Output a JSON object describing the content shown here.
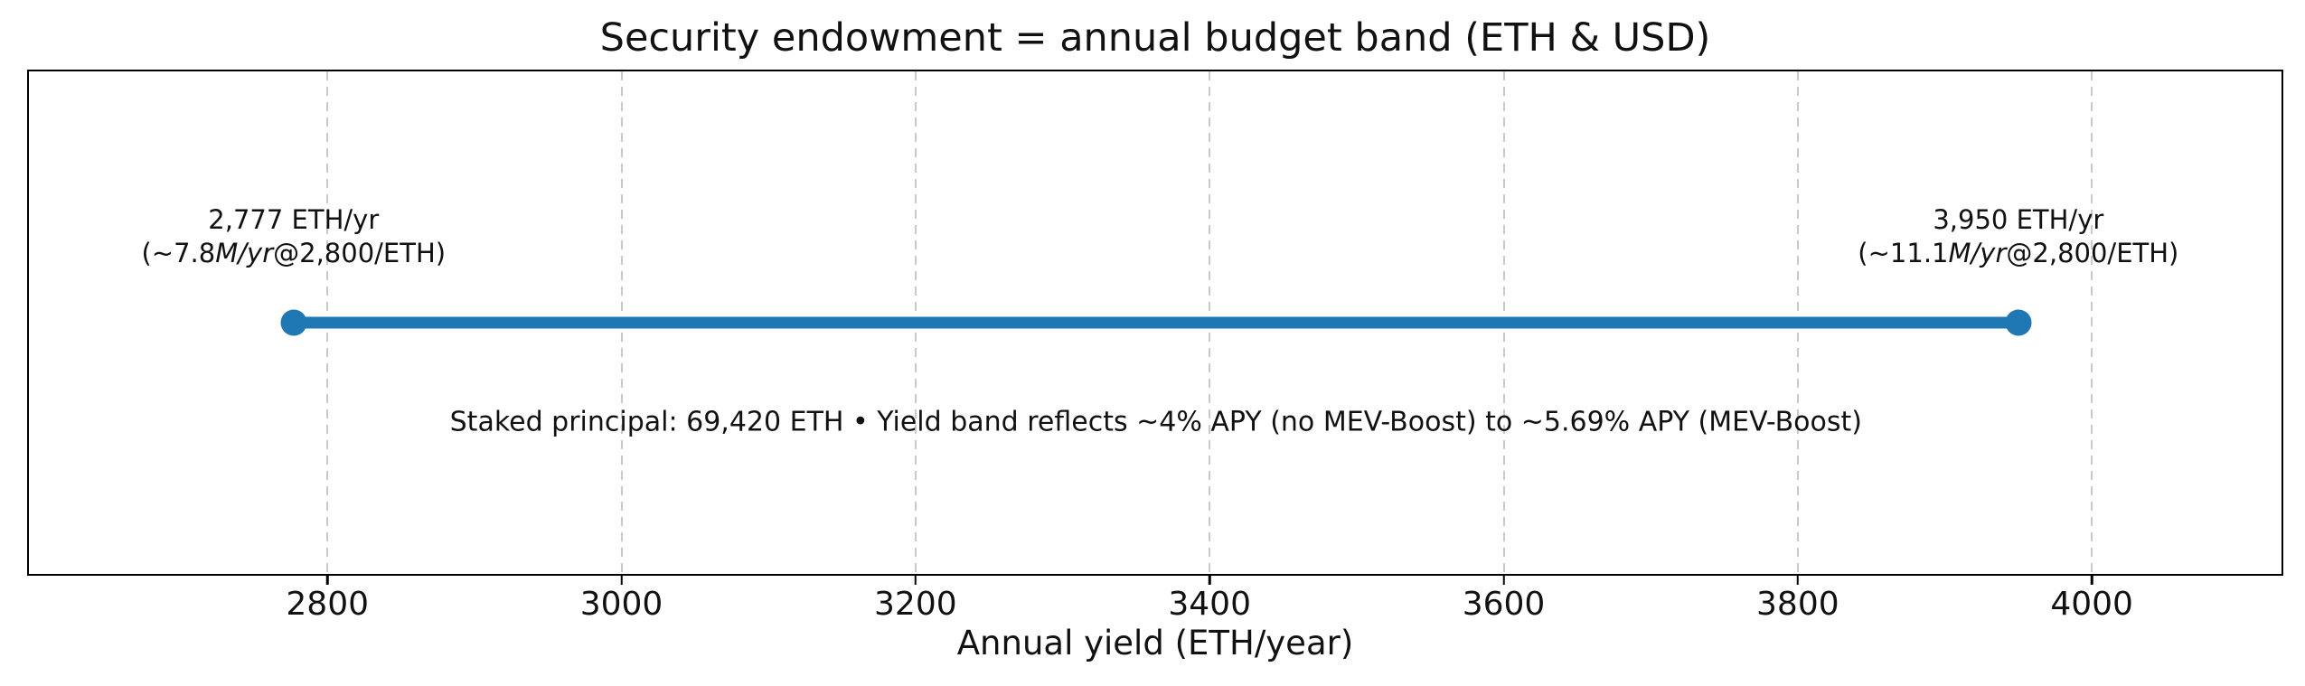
{
  "chart_data": {
    "type": "line",
    "subtype": "horizontal-range-band",
    "title": "Security endowment = annual budget band (ETH & USD)",
    "xlabel": "Annual yield (ETH/year)",
    "xlim": [
      2597,
      4129
    ],
    "x_ticks": [
      2800,
      3000,
      3200,
      3400,
      3600,
      3800,
      4000
    ],
    "grid": {
      "vertical": true,
      "style": "dashed"
    },
    "band": {
      "start": {
        "value": 2777,
        "line1": "2,777 ETH/yr",
        "line2_parts": [
          {
            "t": "(~",
            "i": false
          },
          {
            "t": "7.8",
            "i": false
          },
          {
            "t": "M/yr",
            "i": true
          },
          {
            "t": "@",
            "i": false
          },
          {
            "t": "2,800/ETH)",
            "i": false
          }
        ]
      },
      "end": {
        "value": 3950,
        "line1": "3,950 ETH/yr",
        "line2_parts": [
          {
            "t": "(~",
            "i": false
          },
          {
            "t": "11.1",
            "i": false
          },
          {
            "t": "M/yr",
            "i": true
          },
          {
            "t": "@",
            "i": false
          },
          {
            "t": "2,800/ETH)",
            "i": false
          }
        ]
      }
    },
    "note": "Staked principal: 69,420 ETH • Yield band reflects ~4% APY (no MEV-Boost) to ~5.69% APY (MEV-Boost)"
  },
  "colors": {
    "band": "#1f77b4",
    "grid": "#c9c9c9",
    "frame": "#000000",
    "text": "#111111",
    "background": "#ffffff"
  }
}
